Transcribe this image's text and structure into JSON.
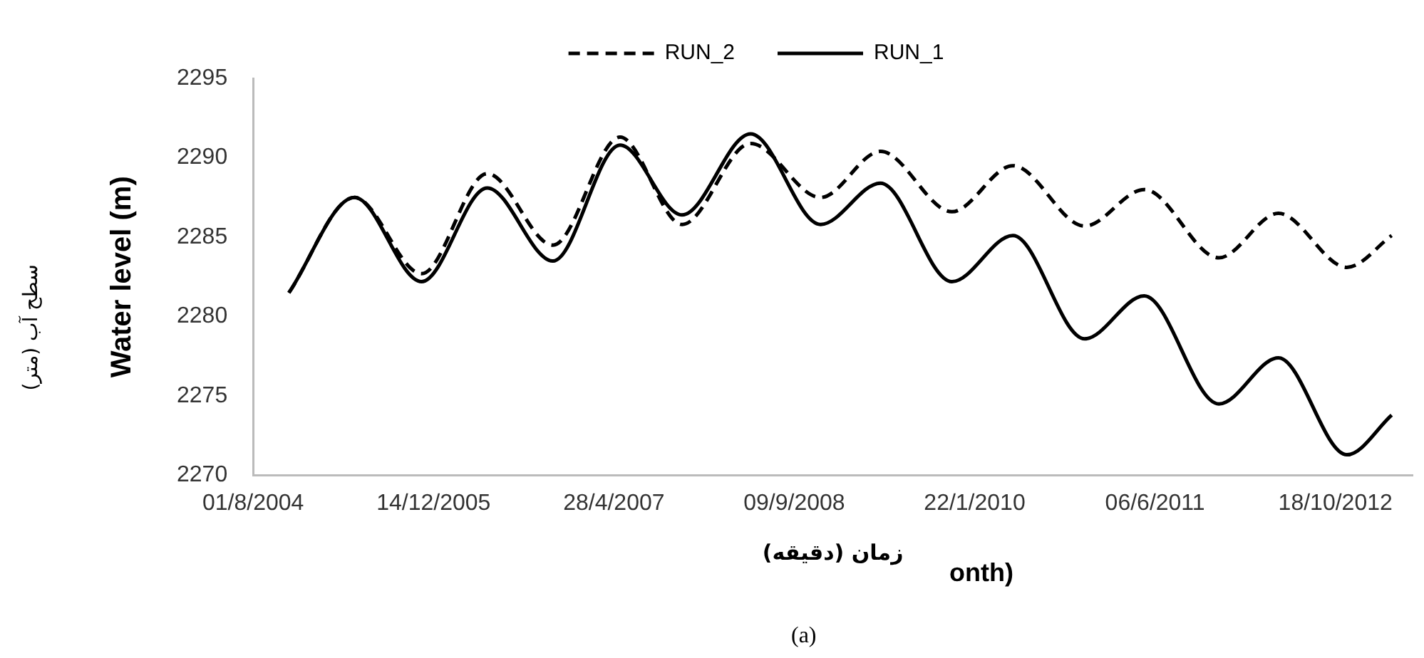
{
  "chart_data": {
    "type": "line",
    "ylabel": "Water level (m)",
    "xlabel": "زمان (دقيقه)",
    "annotations": [
      "سطح آب (متر)",
      "onth)",
      "(a)"
    ],
    "x": [
      "2004-11-08",
      "2005-05-09",
      "2005-11-11",
      "2006-05-12",
      "2006-11-10",
      "2007-05-15",
      "2007-11-03",
      "2008-05-11",
      "2008-11-21",
      "2009-05-06",
      "2009-11-20",
      "2010-05-08",
      "2010-11-23",
      "2011-05-07",
      "2011-11-30",
      "2012-05-13",
      "2012-11-19",
      "2013-03-23"
    ],
    "series": [
      {
        "name": "RUN_2",
        "color": "#000000",
        "line_style": "dashed",
        "values": [
          2281.5,
          2287.5,
          2282.7,
          2289.0,
          2284.5,
          2291.3,
          2285.8,
          2290.9,
          2287.5,
          2290.4,
          2286.6,
          2289.5,
          2285.7,
          2288.0,
          2283.7,
          2286.5,
          2283.1,
          2285.1
        ]
      },
      {
        "name": "RUN_1",
        "color": "#000000",
        "line_style": "solid",
        "values": [
          2281.5,
          2287.5,
          2282.2,
          2288.1,
          2283.5,
          2290.8,
          2286.4,
          2291.5,
          2285.8,
          2288.4,
          2282.2,
          2285.1,
          2278.6,
          2281.3,
          2274.5,
          2277.4,
          2271.3,
          2273.8
        ]
      }
    ],
    "xlim": [
      "2004-08-01",
      "2013-05-20"
    ],
    "xticks": [
      {
        "value": "2004-08-01",
        "label": "01/8/2004"
      },
      {
        "value": "2005-12-14",
        "label": "14/12/2005"
      },
      {
        "value": "2007-04-28",
        "label": "28/4/2007"
      },
      {
        "value": "2008-09-09",
        "label": "09/9/2008"
      },
      {
        "value": "2010-01-22",
        "label": "22/1/2010"
      },
      {
        "value": "2011-06-06",
        "label": "06/6/2011"
      },
      {
        "value": "2012-10-18",
        "label": "18/10/2012"
      }
    ],
    "ylim": [
      2270,
      2295
    ],
    "yticks": [
      2270,
      2275,
      2280,
      2285,
      2290,
      2295
    ],
    "grid": false,
    "legend": "top",
    "marker": "none"
  }
}
